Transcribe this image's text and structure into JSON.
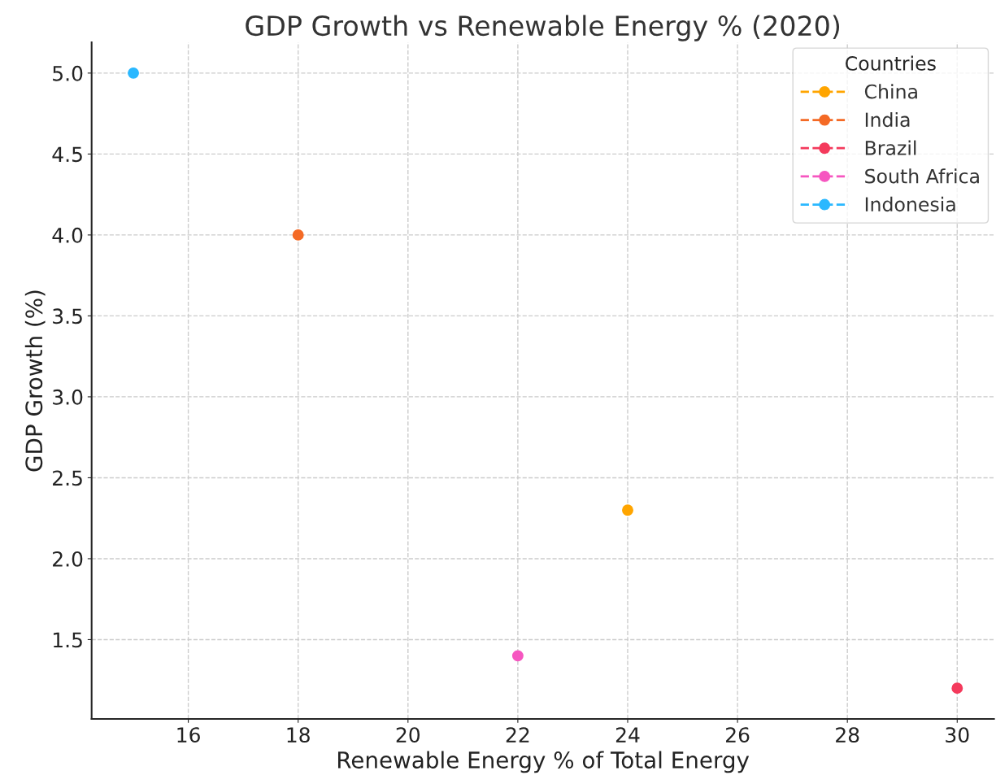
{
  "chart_data": {
    "type": "line",
    "title": "GDP Growth vs Renewable Energy % (2020)",
    "xlabel": "Renewable Energy % of Total Energy",
    "ylabel": "GDP Growth (%)",
    "legend_title": "Countries",
    "series": [
      {
        "name": "China",
        "color": "#ffa500",
        "x": [
          24
        ],
        "values": [
          2.3
        ]
      },
      {
        "name": "India",
        "color": "#f46a25",
        "x": [
          18
        ],
        "values": [
          4.0
        ]
      },
      {
        "name": "Brazil",
        "color": "#f43a5c",
        "x": [
          30
        ],
        "values": [
          1.2
        ]
      },
      {
        "name": "South Africa",
        "color": "#f656c0",
        "x": [
          22
        ],
        "values": [
          1.4
        ]
      },
      {
        "name": "Indonesia",
        "color": "#2ab8ff",
        "x": [
          15
        ],
        "values": [
          5.0
        ]
      }
    ],
    "xlim": [
      14.24,
      30.67
    ],
    "ylim": [
      1.01,
      5.19
    ],
    "xticks": [
      16,
      18,
      20,
      22,
      24,
      26,
      28,
      30
    ],
    "yticks": [
      {
        "value": 1.5,
        "label": "1.5"
      },
      {
        "value": 2.0,
        "label": "2.0"
      },
      {
        "value": 2.5,
        "label": "2.5"
      },
      {
        "value": 3.0,
        "label": "3.0"
      },
      {
        "value": 3.5,
        "label": "3.5"
      },
      {
        "value": 4.0,
        "label": "4.0"
      },
      {
        "value": 4.5,
        "label": "4.5"
      },
      {
        "value": 5.0,
        "label": "5.0"
      }
    ],
    "grid": true,
    "legend": "top right",
    "marker": "circle",
    "line_style": "dashed"
  }
}
